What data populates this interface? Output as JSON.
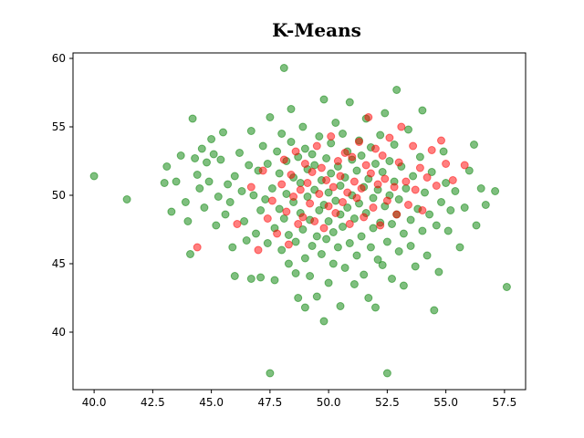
{
  "chart_data": {
    "type": "scatter",
    "title": "K-Means",
    "xlabel": "",
    "ylabel": "",
    "xlim": [
      39.1,
      58.4
    ],
    "ylim": [
      35.8,
      60.4
    ],
    "xticks": [
      "40.0",
      "42.5",
      "45.0",
      "47.5",
      "50.0",
      "52.5",
      "55.0",
      "57.5"
    ],
    "yticks": [
      "40",
      "45",
      "50",
      "55",
      "60"
    ],
    "xtick_values": [
      40.0,
      42.5,
      45.0,
      47.5,
      50.0,
      52.5,
      55.0,
      57.5
    ],
    "ytick_values": [
      40,
      45,
      50,
      55,
      60
    ],
    "grid": false,
    "legend": "none",
    "marker_alpha": 0.5,
    "series": [
      {
        "color": "#008000",
        "points": [
          [
            40.0,
            51.4
          ],
          [
            41.4,
            49.7
          ],
          [
            43.0,
            50.9
          ],
          [
            43.1,
            52.1
          ],
          [
            43.3,
            48.8
          ],
          [
            43.5,
            51.0
          ],
          [
            43.7,
            52.9
          ],
          [
            43.9,
            49.5
          ],
          [
            44.0,
            48.1
          ],
          [
            44.1,
            45.7
          ],
          [
            44.2,
            55.6
          ],
          [
            44.3,
            52.7
          ],
          [
            44.4,
            51.5
          ],
          [
            44.5,
            50.5
          ],
          [
            44.6,
            53.4
          ],
          [
            44.7,
            49.1
          ],
          [
            44.8,
            52.4
          ],
          [
            44.9,
            51.0
          ],
          [
            45.0,
            54.1
          ],
          [
            45.1,
            53.0
          ],
          [
            45.2,
            47.8
          ],
          [
            45.3,
            49.9
          ],
          [
            45.4,
            52.6
          ],
          [
            45.5,
            54.6
          ],
          [
            45.6,
            48.6
          ],
          [
            45.7,
            50.8
          ],
          [
            45.8,
            49.5
          ],
          [
            45.9,
            46.2
          ],
          [
            46.0,
            51.4
          ],
          [
            46.0,
            44.1
          ],
          [
            46.2,
            53.1
          ],
          [
            46.3,
            50.3
          ],
          [
            46.4,
            48.1
          ],
          [
            46.5,
            46.7
          ],
          [
            46.6,
            52.2
          ],
          [
            46.7,
            43.9
          ],
          [
            46.7,
            54.7
          ],
          [
            46.8,
            50.0
          ],
          [
            46.9,
            47.2
          ],
          [
            47.0,
            51.8
          ],
          [
            47.1,
            48.9
          ],
          [
            47.1,
            44.0
          ],
          [
            47.2,
            53.6
          ],
          [
            47.3,
            49.7
          ],
          [
            47.4,
            46.5
          ],
          [
            47.4,
            52.3
          ],
          [
            47.5,
            55.7
          ],
          [
            47.5,
            37.0
          ],
          [
            47.6,
            50.5
          ],
          [
            47.7,
            47.6
          ],
          [
            47.7,
            43.8
          ],
          [
            47.8,
            53.2
          ],
          [
            47.9,
            49.0
          ],
          [
            47.9,
            51.6
          ],
          [
            48.0,
            46.0
          ],
          [
            48.0,
            54.5
          ],
          [
            48.1,
            48.3
          ],
          [
            48.1,
            59.3
          ],
          [
            48.2,
            52.5
          ],
          [
            48.2,
            50.1
          ],
          [
            48.3,
            45.0
          ],
          [
            48.3,
            47.1
          ],
          [
            48.4,
            53.9
          ],
          [
            48.4,
            56.3
          ],
          [
            48.5,
            49.5
          ],
          [
            48.5,
            51.3
          ],
          [
            48.6,
            44.3
          ],
          [
            48.6,
            46.6
          ],
          [
            48.7,
            52.8
          ],
          [
            48.7,
            42.5
          ],
          [
            48.8,
            48.7
          ],
          [
            48.8,
            50.9
          ],
          [
            48.9,
            55.0
          ],
          [
            48.9,
            47.5
          ],
          [
            49.0,
            53.4
          ],
          [
            49.0,
            45.4
          ],
          [
            49.0,
            41.8
          ],
          [
            49.1,
            49.9
          ],
          [
            49.1,
            51.9
          ],
          [
            49.2,
            48.2
          ],
          [
            49.2,
            44.1
          ],
          [
            49.3,
            53.0
          ],
          [
            49.3,
            46.3
          ],
          [
            49.4,
            50.4
          ],
          [
            49.4,
            52.2
          ],
          [
            49.5,
            47.0
          ],
          [
            49.5,
            42.6
          ],
          [
            49.6,
            48.9
          ],
          [
            49.6,
            54.3
          ],
          [
            49.7,
            51.1
          ],
          [
            49.7,
            45.7
          ],
          [
            49.8,
            40.8
          ],
          [
            49.8,
            57.0
          ],
          [
            49.8,
            49.3
          ],
          [
            49.9,
            52.7
          ],
          [
            49.9,
            46.8
          ],
          [
            50.0,
            50.2
          ],
          [
            50.0,
            43.6
          ],
          [
            50.0,
            48.1
          ],
          [
            50.1,
            53.8
          ],
          [
            50.1,
            51.6
          ],
          [
            50.2,
            47.3
          ],
          [
            50.2,
            45.0
          ],
          [
            50.3,
            49.6
          ],
          [
            50.3,
            55.3
          ],
          [
            50.4,
            52.1
          ],
          [
            50.4,
            46.2
          ],
          [
            50.5,
            50.7
          ],
          [
            50.5,
            41.9
          ],
          [
            50.5,
            48.6
          ],
          [
            50.6,
            54.5
          ],
          [
            50.6,
            47.7
          ],
          [
            50.7,
            51.3
          ],
          [
            50.7,
            44.7
          ],
          [
            50.8,
            49.1
          ],
          [
            50.8,
            53.2
          ],
          [
            50.9,
            56.8
          ],
          [
            50.9,
            46.5
          ],
          [
            51.0,
            50.0
          ],
          [
            51.0,
            52.6
          ],
          [
            51.1,
            48.3
          ],
          [
            51.1,
            43.5
          ],
          [
            51.2,
            51.8
          ],
          [
            51.2,
            45.6
          ],
          [
            51.3,
            49.4
          ],
          [
            51.3,
            54.0
          ],
          [
            51.4,
            47.0
          ],
          [
            51.4,
            52.9
          ],
          [
            51.5,
            50.6
          ],
          [
            51.5,
            44.2
          ],
          [
            51.6,
            48.7
          ],
          [
            51.6,
            55.6
          ],
          [
            51.7,
            42.5
          ],
          [
            51.7,
            51.2
          ],
          [
            51.8,
            46.2
          ],
          [
            51.8,
            53.5
          ],
          [
            51.9,
            49.8
          ],
          [
            51.9,
            47.6
          ],
          [
            52.0,
            52.3
          ],
          [
            52.0,
            41.8
          ],
          [
            52.1,
            45.3
          ],
          [
            52.1,
            50.4
          ],
          [
            52.2,
            54.4
          ],
          [
            52.2,
            48.0
          ],
          [
            52.3,
            51.7
          ],
          [
            52.3,
            44.9
          ],
          [
            52.4,
            49.2
          ],
          [
            52.4,
            56.0
          ],
          [
            52.5,
            46.6
          ],
          [
            52.5,
            37.0
          ],
          [
            52.6,
            52.5
          ],
          [
            52.6,
            50.0
          ],
          [
            52.7,
            47.9
          ],
          [
            52.7,
            43.9
          ],
          [
            52.8,
            53.7
          ],
          [
            52.8,
            51.0
          ],
          [
            52.9,
            48.6
          ],
          [
            52.9,
            57.7
          ],
          [
            53.0,
            45.9
          ],
          [
            53.0,
            49.7
          ],
          [
            53.1,
            52.1
          ],
          [
            53.2,
            43.4
          ],
          [
            53.2,
            47.2
          ],
          [
            53.3,
            50.5
          ],
          [
            53.4,
            54.8
          ],
          [
            53.5,
            48.2
          ],
          [
            53.5,
            46.3
          ],
          [
            53.6,
            51.4
          ],
          [
            53.7,
            44.8
          ],
          [
            53.8,
            49.0
          ],
          [
            53.9,
            52.8
          ],
          [
            54.0,
            47.4
          ],
          [
            54.0,
            56.2
          ],
          [
            54.1,
            50.2
          ],
          [
            54.2,
            45.6
          ],
          [
            54.3,
            48.6
          ],
          [
            54.4,
            51.7
          ],
          [
            54.5,
            41.6
          ],
          [
            54.6,
            47.8
          ],
          [
            54.7,
            44.4
          ],
          [
            54.8,
            49.5
          ],
          [
            54.9,
            53.2
          ],
          [
            55.0,
            50.9
          ],
          [
            55.1,
            47.4
          ],
          [
            55.2,
            48.9
          ],
          [
            55.4,
            50.3
          ],
          [
            55.6,
            46.2
          ],
          [
            55.8,
            49.1
          ],
          [
            56.0,
            51.8
          ],
          [
            56.2,
            53.7
          ],
          [
            56.3,
            47.8
          ],
          [
            56.5,
            50.5
          ],
          [
            56.7,
            49.3
          ],
          [
            57.1,
            50.3
          ],
          [
            57.6,
            43.3
          ]
        ]
      },
      {
        "color": "#ff0000",
        "points": [
          [
            44.4,
            46.2
          ],
          [
            46.1,
            47.9
          ],
          [
            46.7,
            50.6
          ],
          [
            47.0,
            46.0
          ],
          [
            47.2,
            51.8
          ],
          [
            47.4,
            48.3
          ],
          [
            47.6,
            49.6
          ],
          [
            47.8,
            47.2
          ],
          [
            48.0,
            50.8
          ],
          [
            48.1,
            52.6
          ],
          [
            48.2,
            48.8
          ],
          [
            48.3,
            46.4
          ],
          [
            48.4,
            51.5
          ],
          [
            48.5,
            49.9
          ],
          [
            48.6,
            53.2
          ],
          [
            48.7,
            47.9
          ],
          [
            48.8,
            50.4
          ],
          [
            48.9,
            48.4
          ],
          [
            49.0,
            52.3
          ],
          [
            49.1,
            50.9
          ],
          [
            49.2,
            49.4
          ],
          [
            49.3,
            51.7
          ],
          [
            49.4,
            48.1
          ],
          [
            49.5,
            53.6
          ],
          [
            49.6,
            50.1
          ],
          [
            49.7,
            52.0
          ],
          [
            49.8,
            47.6
          ],
          [
            49.9,
            51.1
          ],
          [
            50.0,
            49.2
          ],
          [
            50.1,
            54.3
          ],
          [
            50.2,
            50.6
          ],
          [
            50.3,
            48.7
          ],
          [
            50.4,
            52.5
          ],
          [
            50.5,
            51.4
          ],
          [
            50.6,
            49.5
          ],
          [
            50.7,
            53.1
          ],
          [
            50.8,
            50.2
          ],
          [
            50.9,
            47.9
          ],
          [
            51.0,
            52.8
          ],
          [
            51.1,
            51.0
          ],
          [
            51.2,
            49.8
          ],
          [
            51.3,
            53.9
          ],
          [
            51.4,
            50.5
          ],
          [
            51.5,
            48.4
          ],
          [
            51.6,
            52.2
          ],
          [
            51.7,
            55.7
          ],
          [
            51.8,
            51.6
          ],
          [
            51.9,
            49.1
          ],
          [
            52.0,
            53.4
          ],
          [
            52.1,
            50.8
          ],
          [
            52.2,
            47.8
          ],
          [
            52.3,
            52.9
          ],
          [
            52.4,
            51.2
          ],
          [
            52.5,
            49.6
          ],
          [
            52.6,
            54.2
          ],
          [
            52.8,
            50.6
          ],
          [
            52.9,
            48.6
          ],
          [
            53.0,
            52.4
          ],
          [
            53.1,
            55.0
          ],
          [
            53.3,
            51.0
          ],
          [
            53.4,
            49.3
          ],
          [
            53.6,
            53.6
          ],
          [
            53.7,
            50.4
          ],
          [
            53.9,
            52.0
          ],
          [
            54.0,
            48.9
          ],
          [
            54.2,
            51.3
          ],
          [
            54.4,
            53.3
          ],
          [
            54.6,
            50.7
          ],
          [
            54.8,
            54.0
          ],
          [
            55.0,
            52.3
          ],
          [
            55.3,
            51.1
          ],
          [
            55.8,
            52.2
          ]
        ]
      }
    ]
  }
}
